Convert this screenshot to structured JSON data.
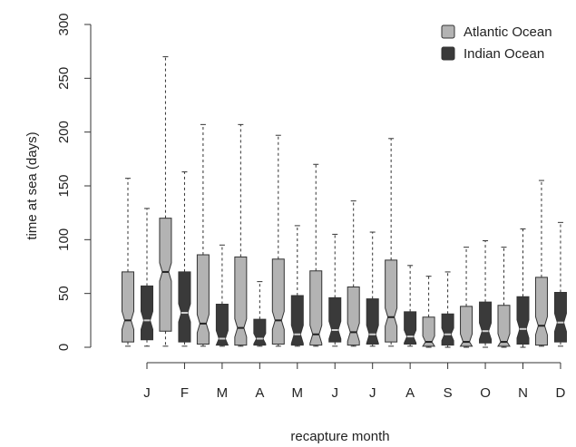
{
  "chart_data": {
    "type": "boxplot",
    "title": "",
    "xlabel": "recapture month",
    "ylabel": "time at sea (days)",
    "ylim": [
      0,
      300
    ],
    "yticks": [
      0,
      50,
      100,
      150,
      200,
      250,
      300
    ],
    "notched": true,
    "grid": false,
    "legend_position": "top-right",
    "categories": [
      "J",
      "F",
      "M",
      "A",
      "M",
      "J",
      "J",
      "A",
      "S",
      "O",
      "N",
      "D"
    ],
    "series": [
      {
        "name": "Atlantic Ocean",
        "color": "#b3b3b3",
        "boxes": [
          {
            "min": 1,
            "q1": 5,
            "median": 25,
            "q3": 70,
            "max": 157
          },
          {
            "min": 1,
            "q1": 15,
            "median": 70,
            "q3": 120,
            "max": 270
          },
          {
            "min": 1,
            "q1": 3,
            "median": 22,
            "q3": 86,
            "max": 207
          },
          {
            "min": 1,
            "q1": 2,
            "median": 18,
            "q3": 84,
            "max": 207
          },
          {
            "min": 1,
            "q1": 3,
            "median": 25,
            "q3": 82,
            "max": 197
          },
          {
            "min": 1,
            "q1": 2,
            "median": 12,
            "q3": 71,
            "max": 170
          },
          {
            "min": 1,
            "q1": 2,
            "median": 14,
            "q3": 56,
            "max": 136
          },
          {
            "min": 1,
            "q1": 5,
            "median": 28,
            "q3": 81,
            "max": 194
          },
          {
            "min": 0,
            "q1": 1,
            "median": 5,
            "q3": 28,
            "max": 66
          },
          {
            "min": 0,
            "q1": 1,
            "median": 5,
            "q3": 38,
            "max": 93
          },
          {
            "min": 0,
            "q1": 1,
            "median": 5,
            "q3": 39,
            "max": 93
          },
          {
            "min": 1,
            "q1": 2,
            "median": 20,
            "q3": 65,
            "max": 155
          }
        ]
      },
      {
        "name": "Indian Ocean",
        "color": "#3a3a3a",
        "boxes": [
          {
            "min": 1,
            "q1": 7,
            "median": 25,
            "q3": 57,
            "max": 129
          },
          {
            "min": 1,
            "q1": 5,
            "median": 32,
            "q3": 70,
            "max": 163
          },
          {
            "min": 1,
            "q1": 2,
            "median": 8,
            "q3": 40,
            "max": 95
          },
          {
            "min": 1,
            "q1": 2,
            "median": 8,
            "q3": 26,
            "max": 61
          },
          {
            "min": 1,
            "q1": 2,
            "median": 12,
            "q3": 48,
            "max": 113
          },
          {
            "min": 1,
            "q1": 5,
            "median": 16,
            "q3": 46,
            "max": 105
          },
          {
            "min": 1,
            "q1": 3,
            "median": 12,
            "q3": 45,
            "max": 107
          },
          {
            "min": 1,
            "q1": 3,
            "median": 10,
            "q3": 33,
            "max": 76
          },
          {
            "min": 0,
            "q1": 2,
            "median": 12,
            "q3": 31,
            "max": 70
          },
          {
            "min": 0,
            "q1": 4,
            "median": 15,
            "q3": 42,
            "max": 99
          },
          {
            "min": 0,
            "q1": 3,
            "median": 17,
            "q3": 47,
            "max": 110
          },
          {
            "min": 1,
            "q1": 5,
            "median": 23,
            "q3": 51,
            "max": 116
          }
        ]
      }
    ]
  }
}
